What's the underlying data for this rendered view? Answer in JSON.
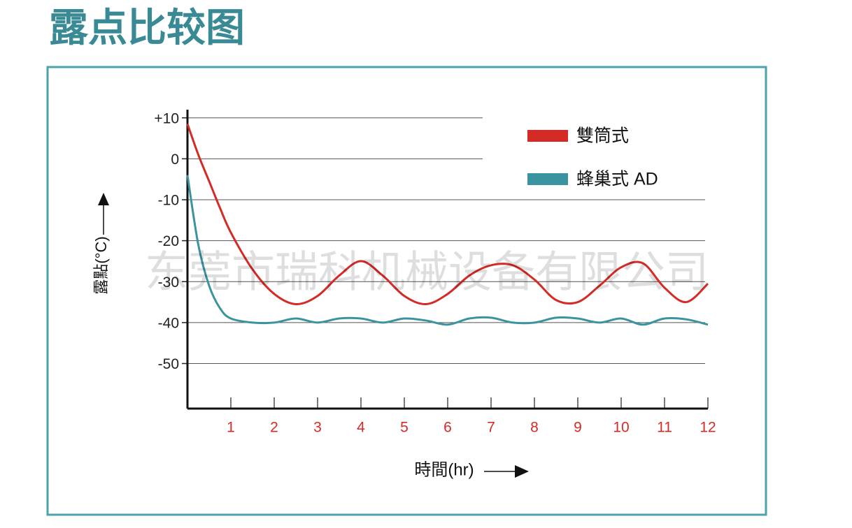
{
  "chart_data": {
    "type": "line",
    "title": "露点比较图",
    "watermark": "东莞市瑞科机械设备有限公司",
    "y_label": "露點(°C)",
    "x_label": "時間(hr)",
    "xlim": [
      0,
      12
    ],
    "xticks": [
      1,
      2,
      3,
      4,
      5,
      6,
      7,
      8,
      9,
      10,
      11,
      12
    ],
    "ylim": [
      -61,
      12
    ],
    "yticks": [
      {
        "value": 10,
        "label": "+10"
      },
      0,
      -10,
      -20,
      -30,
      -40,
      -50
    ],
    "grid": true,
    "legend": "upper right",
    "x": [
      0,
      0.25,
      0.5,
      0.75,
      1,
      1.5,
      2,
      2.5,
      3,
      3.5,
      4,
      4.5,
      5,
      5.5,
      6,
      6.5,
      7,
      7.5,
      8,
      8.5,
      9,
      9.5,
      10,
      10.5,
      11,
      11.5,
      12
    ],
    "series": [
      {
        "name": "雙筒式",
        "color": "#d52b27",
        "values": [
          8.5,
          1,
          -5.5,
          -12,
          -18,
          -27,
          -33,
          -35.5,
          -33.5,
          -28.5,
          -25,
          -28.5,
          -33.5,
          -35.5,
          -33,
          -28.5,
          -26,
          -26,
          -29.5,
          -34.5,
          -35,
          -31,
          -26.5,
          -25.5,
          -31.5,
          -35,
          -30.5
        ]
      },
      {
        "name": "蜂巢式 AD",
        "color": "#3a94a0",
        "values": [
          -4,
          -21,
          -31,
          -36.5,
          -39,
          -40,
          -40,
          -39,
          -40,
          -39,
          -39,
          -40,
          -39,
          -39.5,
          -40.5,
          -39,
          -38.8,
          -40,
          -40,
          -38.8,
          -39,
          -40,
          -39,
          -40.5,
          -39,
          -39.2,
          -40.5
        ]
      }
    ]
  }
}
